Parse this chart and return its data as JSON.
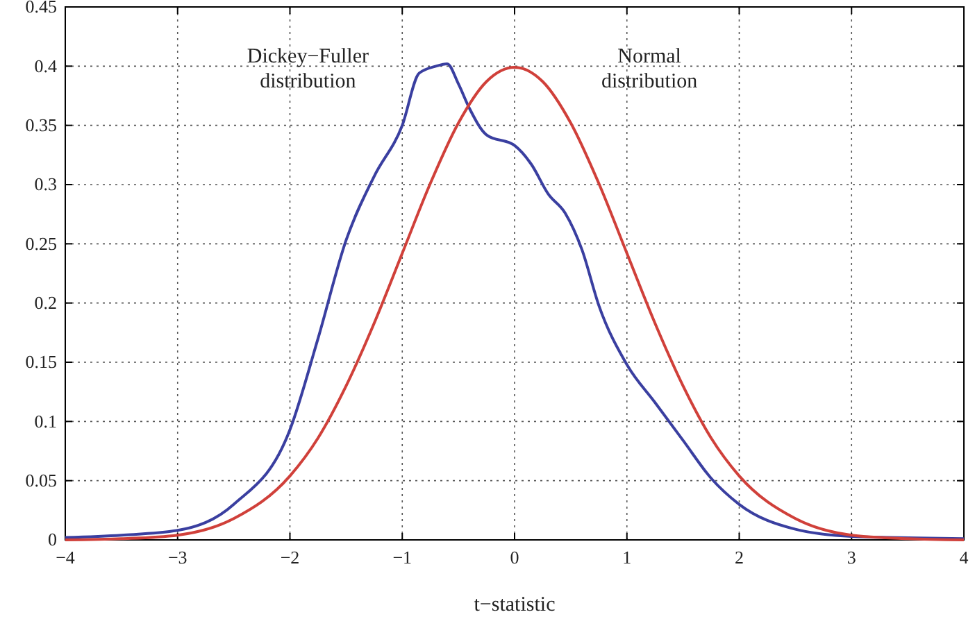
{
  "chart_data": {
    "type": "line",
    "xlabel": "t−statistic",
    "xlim": [
      -4,
      4
    ],
    "xticks": [
      -4,
      -3,
      -2,
      -1,
      0,
      1,
      2,
      3,
      4
    ],
    "ylim": [
      0,
      0.45
    ],
    "yticks": [
      0,
      0.05,
      0.1,
      0.15,
      0.2,
      0.25,
      0.3,
      0.35,
      0.4,
      0.45
    ],
    "grid": true,
    "line_style": "solid",
    "marker": "none",
    "annotations": [
      "Dickey−Fuller distribution",
      "Normal distribution"
    ],
    "series": [
      {
        "color": "#3a3fa0",
        "x": [
          -4,
          -3.5,
          -3,
          -2.5,
          -2,
          -1.75,
          -1.5,
          -1.25,
          -1,
          -0.85,
          -0.7,
          -0.6,
          -0.5,
          -0.4,
          -0.25,
          0,
          0.15,
          0.3,
          0.45,
          0.6,
          0.75,
          1,
          1.25,
          1.5,
          1.75,
          2,
          2.5,
          3,
          4
        ],
        "values": [
          0.002,
          0.004,
          0.008,
          0.03,
          0.093,
          0.17,
          0.253,
          0.307,
          0.35,
          0.394,
          0.4,
          0.402,
          0.385,
          0.364,
          0.342,
          0.333,
          0.317,
          0.292,
          0.276,
          0.245,
          0.198,
          0.148,
          0.116,
          0.084,
          0.052,
          0.03,
          0.009,
          0.003,
          0.001
        ]
      },
      {
        "color": "#d0403a",
        "x": [
          -4,
          -3.5,
          -3,
          -2.5,
          -2,
          -1.75,
          -1.5,
          -1.25,
          -1,
          -0.75,
          -0.5,
          -0.25,
          0,
          0.25,
          0.5,
          0.75,
          1,
          1.25,
          1.5,
          1.75,
          2,
          2.5,
          3,
          3.5,
          4
        ],
        "values": [
          0,
          0.001,
          0.004,
          0.018,
          0.054,
          0.086,
          0.13,
          0.183,
          0.242,
          0.301,
          0.352,
          0.387,
          0.399,
          0.387,
          0.352,
          0.301,
          0.242,
          0.183,
          0.13,
          0.086,
          0.054,
          0.018,
          0.004,
          0.001,
          0
        ]
      }
    ]
  }
}
